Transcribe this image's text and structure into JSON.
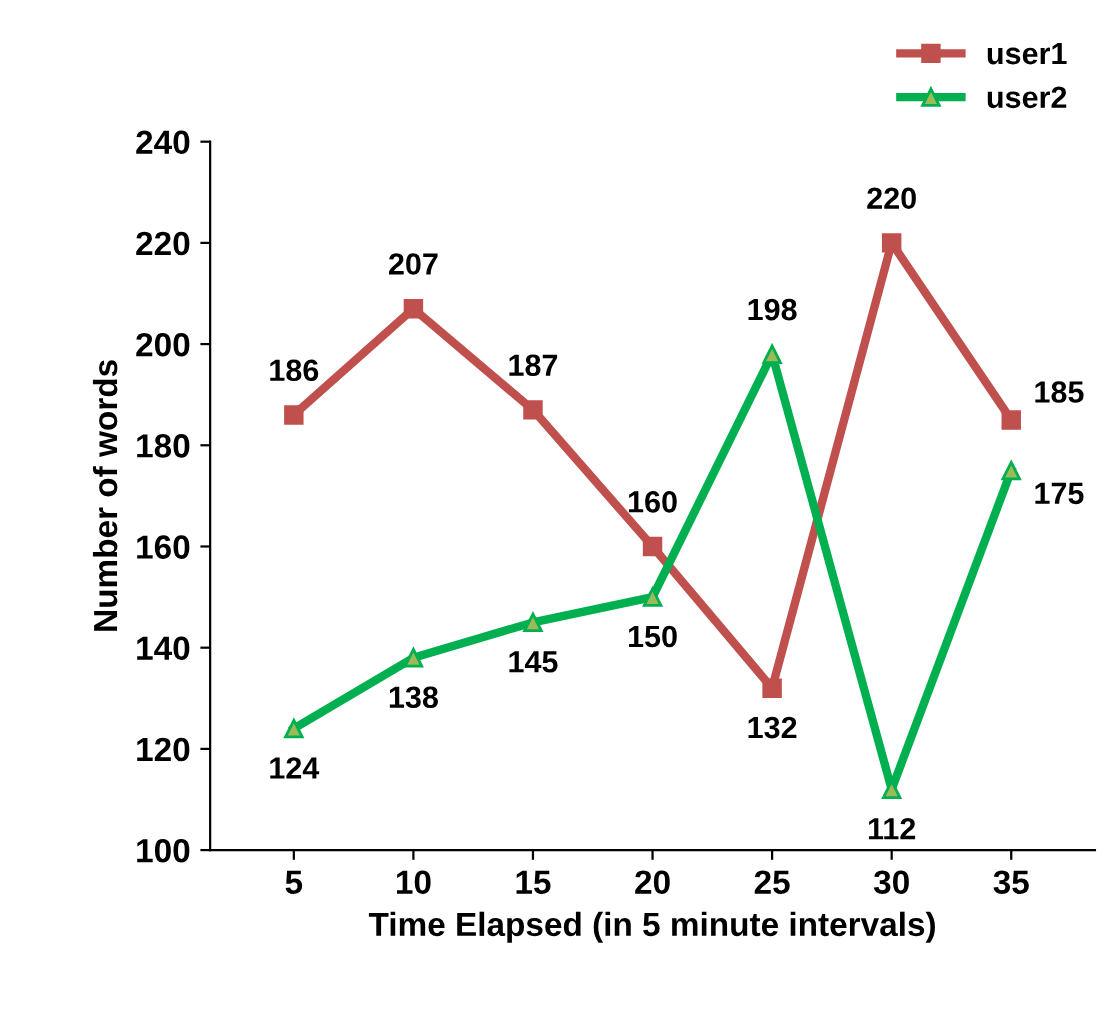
{
  "chart_data": {
    "type": "line",
    "xlabel": "Time Elapsed (in 5 minute intervals)",
    "ylabel": "Number of words",
    "categories": [
      "5",
      "10",
      "15",
      "20",
      "25",
      "30",
      "35"
    ],
    "series": [
      {
        "name": "user1",
        "color": "#c0504d",
        "marker": "square",
        "values": [
          186,
          207,
          187,
          160,
          132,
          220,
          185
        ]
      },
      {
        "name": "user2",
        "color": "#00b050",
        "marker": "triangle",
        "values": [
          124,
          138,
          145,
          150,
          198,
          112,
          175
        ]
      }
    ],
    "ylim": [
      100,
      240
    ],
    "yticks": [
      100,
      120,
      140,
      160,
      180,
      200,
      220,
      240
    ],
    "grid": false,
    "legend": "top right",
    "data_labels": true
  }
}
